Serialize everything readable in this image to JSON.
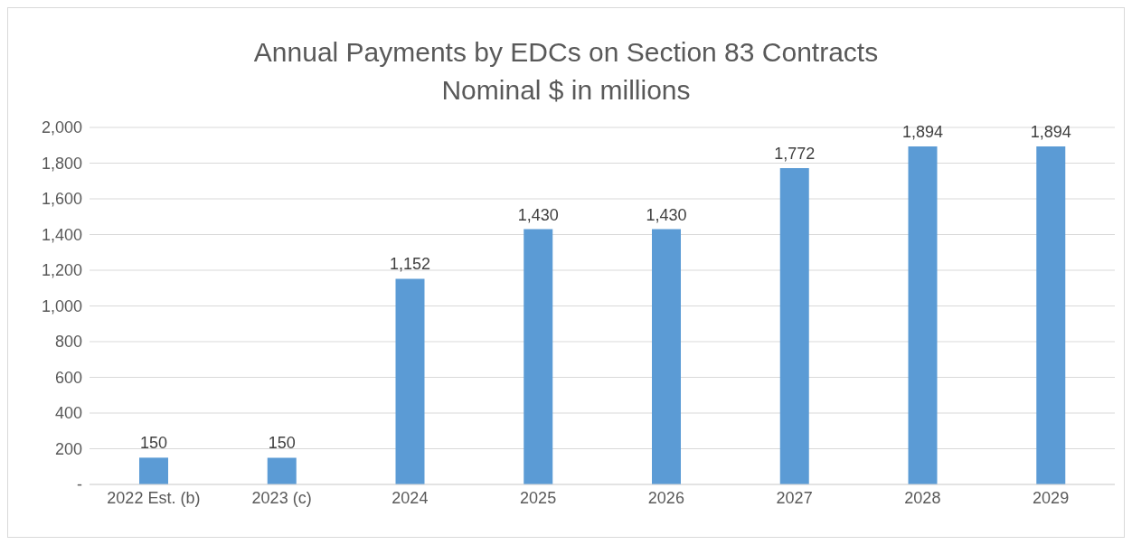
{
  "chart_data": {
    "type": "bar",
    "title": "Annual Payments by EDCs on Section 83 Contracts",
    "subtitle": "Nominal $ in millions",
    "categories": [
      "2022 Est. (b)",
      "2023 (c)",
      "2024",
      "2025",
      "2026",
      "2027",
      "2028",
      "2029"
    ],
    "values": [
      150,
      150,
      1152,
      1430,
      1430,
      1772,
      1894,
      1894
    ],
    "value_labels": [
      "150",
      "150",
      "1,152",
      "1,430",
      "1,430",
      "1,772",
      "1,894",
      "1,894"
    ],
    "color": "#5b9bd5",
    "ylim": [
      0,
      2000
    ],
    "yticks": [
      {
        "value": 0,
        "label": "-"
      },
      200,
      400,
      600,
      800,
      {
        "value": 1000,
        "label": "1,000"
      },
      {
        "value": 1200,
        "label": "1,200"
      },
      {
        "value": 1400,
        "label": "1,400"
      },
      {
        "value": 1600,
        "label": "1,600"
      },
      {
        "value": 1800,
        "label": "1,800"
      },
      {
        "value": 2000,
        "label": "2,000"
      }
    ],
    "grid": "y",
    "legend": false
  }
}
